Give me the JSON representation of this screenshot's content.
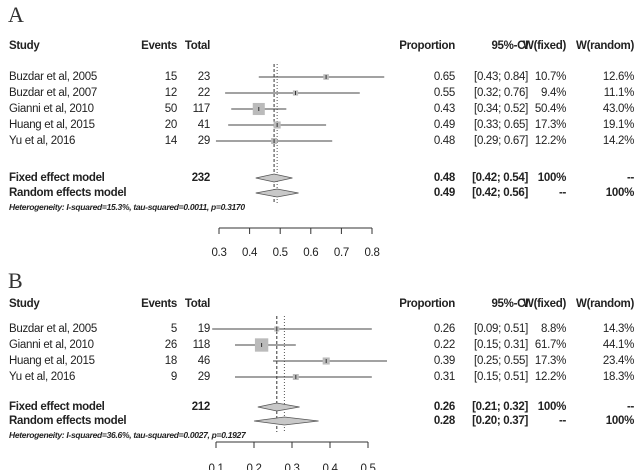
{
  "chart_data": [
    {
      "type": "forest",
      "panel_label": "A",
      "headers": {
        "study": "Study",
        "events": "Events",
        "total": "Total",
        "proportion": "Proportion",
        "ci": "95%-CI",
        "wfixed": "W(fixed)",
        "wrandom": "W(random)"
      },
      "studies": [
        {
          "study": "Buzdar et al, 2005",
          "events": "15",
          "total": "23",
          "proportion": 0.65,
          "lo": 0.43,
          "hi": 0.84,
          "prop_text": "0.65",
          "ci_text": "[0.43; 0.84]",
          "wfixed": "10.7%",
          "wrandom": "12.6%",
          "weight": 10.7
        },
        {
          "study": "Buzdar et al, 2007",
          "events": "12",
          "total": "22",
          "proportion": 0.55,
          "lo": 0.32,
          "hi": 0.76,
          "prop_text": "0.55",
          "ci_text": "[0.32; 0.76]",
          "wfixed": "9.4%",
          "wrandom": "11.1%",
          "weight": 9.4
        },
        {
          "study": "Gianni et al, 2010",
          "events": "50",
          "total": "117",
          "proportion": 0.43,
          "lo": 0.34,
          "hi": 0.52,
          "prop_text": "0.43",
          "ci_text": "[0.34; 0.52]",
          "wfixed": "50.4%",
          "wrandom": "43.0%",
          "weight": 50.4
        },
        {
          "study": "Huang et al, 2015",
          "events": "20",
          "total": "41",
          "proportion": 0.49,
          "lo": 0.33,
          "hi": 0.65,
          "prop_text": "0.49",
          "ci_text": "[0.33; 0.65]",
          "wfixed": "17.3%",
          "wrandom": "19.1%",
          "weight": 17.3
        },
        {
          "study": "Yu et al, 2016",
          "events": "14",
          "total": "29",
          "proportion": 0.48,
          "lo": 0.29,
          "hi": 0.67,
          "prop_text": "0.48",
          "ci_text": "[0.29; 0.67]",
          "wfixed": "12.2%",
          "wrandom": "14.2%",
          "weight": 12.2
        }
      ],
      "models": [
        {
          "label": "Fixed effect model",
          "total": "232",
          "est": 0.48,
          "lo": 0.42,
          "hi": 0.54,
          "prop_text": "0.48",
          "ci_text": "[0.42; 0.54]",
          "wfixed": "100%",
          "wrandom": "--"
        },
        {
          "label": "Random effects model",
          "total": "",
          "est": 0.49,
          "lo": 0.42,
          "hi": 0.56,
          "prop_text": "0.49",
          "ci_text": "[0.42; 0.56]",
          "wfixed": "--",
          "wrandom": "100%"
        }
      ],
      "heterogeneity": "Heterogeneity: I-squared=15.3%, tau-squared=0.0011, p=0.3170",
      "xlim": [
        0.3,
        0.8
      ],
      "ticks": [
        "0.3",
        "0.4",
        "0.5",
        "0.6",
        "0.7",
        "0.8"
      ]
    },
    {
      "type": "forest",
      "panel_label": "B",
      "headers": {
        "study": "Study",
        "events": "Events",
        "total": "Total",
        "proportion": "Proportion",
        "ci": "95%-CI",
        "wfixed": "W(fixed)",
        "wrandom": "W(random)"
      },
      "studies": [
        {
          "study": "Buzdar et al, 2005",
          "events": "5",
          "total": "19",
          "proportion": 0.26,
          "lo": 0.09,
          "hi": 0.51,
          "prop_text": "0.26",
          "ci_text": "[0.09; 0.51]",
          "wfixed": "8.8%",
          "wrandom": "14.3%",
          "weight": 8.8
        },
        {
          "study": "Gianni et al, 2010",
          "events": "26",
          "total": "118",
          "proportion": 0.22,
          "lo": 0.15,
          "hi": 0.31,
          "prop_text": "0.22",
          "ci_text": "[0.15; 0.31]",
          "wfixed": "61.7%",
          "wrandom": "44.1%",
          "weight": 61.7
        },
        {
          "study": "Huang et al, 2015",
          "events": "18",
          "total": "46",
          "proportion": 0.39,
          "lo": 0.25,
          "hi": 0.55,
          "prop_text": "0.39",
          "ci_text": "[0.25; 0.55]",
          "wfixed": "17.3%",
          "wrandom": "23.4%",
          "weight": 17.3
        },
        {
          "study": "Yu et al, 2016",
          "events": "9",
          "total": "29",
          "proportion": 0.31,
          "lo": 0.15,
          "hi": 0.51,
          "prop_text": "0.31",
          "ci_text": "[0.15; 0.51]",
          "wfixed": "12.2%",
          "wrandom": "18.3%",
          "weight": 12.2
        }
      ],
      "models": [
        {
          "label": "Fixed effect model",
          "total": "212",
          "est": 0.26,
          "lo": 0.21,
          "hi": 0.32,
          "prop_text": "0.26",
          "ci_text": "[0.21; 0.32]",
          "wfixed": "100%",
          "wrandom": "--"
        },
        {
          "label": "Random effects model",
          "total": "",
          "est": 0.28,
          "lo": 0.2,
          "hi": 0.37,
          "prop_text": "0.28",
          "ci_text": "[0.20; 0.37]",
          "wfixed": "--",
          "wrandom": "100%"
        }
      ],
      "heterogeneity": "Heterogeneity: I-squared=36.6%, tau-squared=0.0027, p=0.1927",
      "xlim": [
        0.1,
        0.5
      ],
      "ticks": [
        "0.1",
        "0.2",
        "0.3",
        "0.4",
        "0.5"
      ]
    }
  ]
}
